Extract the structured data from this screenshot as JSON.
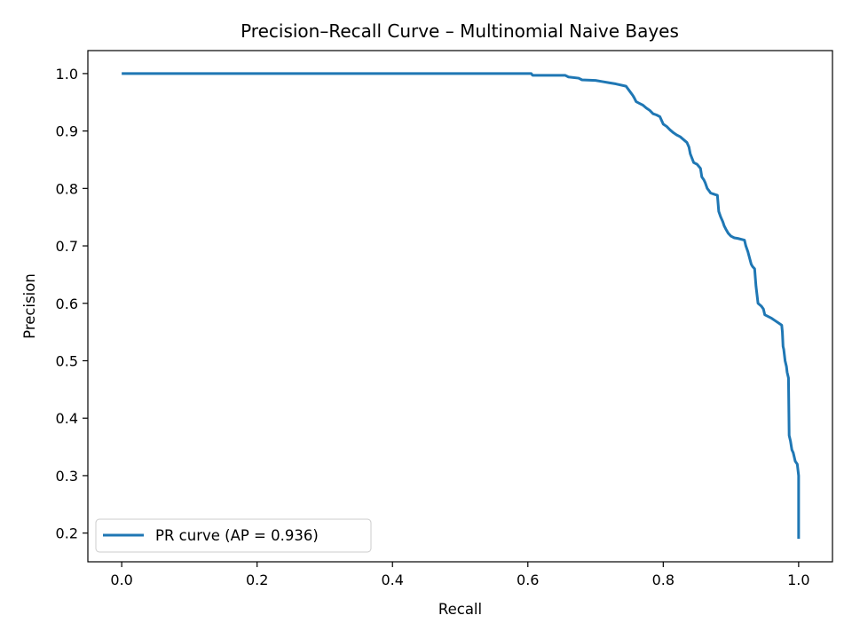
{
  "chart_data": {
    "type": "line",
    "title": "Precision–Recall Curve – Multinomial Naive Bayes",
    "xlabel": "Recall",
    "ylabel": "Precision",
    "xlim": [
      -0.05,
      1.05
    ],
    "ylim": [
      0.15,
      1.04
    ],
    "xticks": [
      0.0,
      0.2,
      0.4,
      0.6,
      0.8,
      1.0
    ],
    "xtick_labels": [
      "0.0",
      "0.2",
      "0.4",
      "0.6",
      "0.8",
      "1.0"
    ],
    "yticks": [
      0.2,
      0.3,
      0.4,
      0.5,
      0.6,
      0.7,
      0.8,
      0.9,
      1.0
    ],
    "ytick_labels": [
      "0.2",
      "0.3",
      "0.4",
      "0.5",
      "0.6",
      "0.7",
      "0.8",
      "0.9",
      "1.0"
    ],
    "grid": false,
    "legend_position": "lower-left",
    "series": [
      {
        "name": "PR curve (AP = 0.936)",
        "color": "#1f77b4",
        "x": [
          0.0,
          0.605,
          0.607,
          0.655,
          0.66,
          0.675,
          0.68,
          0.7,
          0.71,
          0.72,
          0.73,
          0.745,
          0.75,
          0.755,
          0.757,
          0.76,
          0.765,
          0.77,
          0.775,
          0.78,
          0.785,
          0.79,
          0.795,
          0.8,
          0.805,
          0.81,
          0.815,
          0.82,
          0.825,
          0.83,
          0.835,
          0.838,
          0.84,
          0.845,
          0.85,
          0.855,
          0.857,
          0.86,
          0.862,
          0.865,
          0.867,
          0.87,
          0.875,
          0.88,
          0.882,
          0.885,
          0.888,
          0.89,
          0.893,
          0.896,
          0.9,
          0.905,
          0.91,
          0.92,
          0.922,
          0.925,
          0.93,
          0.932,
          0.935,
          0.937,
          0.94,
          0.945,
          0.948,
          0.95,
          0.96,
          0.965,
          0.97,
          0.975,
          0.976,
          0.977,
          0.978,
          0.98,
          0.982,
          0.983,
          0.984,
          0.985,
          0.986,
          0.988,
          0.99,
          0.992,
          0.995,
          0.998,
          1.0,
          1.0
        ],
        "y": [
          1.0,
          1.0,
          0.997,
          0.997,
          0.994,
          0.992,
          0.989,
          0.988,
          0.986,
          0.984,
          0.982,
          0.978,
          0.97,
          0.962,
          0.958,
          0.951,
          0.948,
          0.945,
          0.94,
          0.936,
          0.93,
          0.928,
          0.925,
          0.912,
          0.908,
          0.902,
          0.897,
          0.893,
          0.89,
          0.885,
          0.88,
          0.872,
          0.86,
          0.845,
          0.842,
          0.835,
          0.82,
          0.815,
          0.81,
          0.8,
          0.797,
          0.792,
          0.79,
          0.788,
          0.76,
          0.75,
          0.742,
          0.735,
          0.728,
          0.722,
          0.717,
          0.714,
          0.713,
          0.71,
          0.7,
          0.69,
          0.668,
          0.664,
          0.66,
          0.63,
          0.6,
          0.595,
          0.59,
          0.58,
          0.574,
          0.57,
          0.566,
          0.562,
          0.55,
          0.525,
          0.52,
          0.5,
          0.49,
          0.48,
          0.475,
          0.47,
          0.37,
          0.36,
          0.345,
          0.34,
          0.325,
          0.32,
          0.3,
          0.19
        ]
      }
    ]
  }
}
